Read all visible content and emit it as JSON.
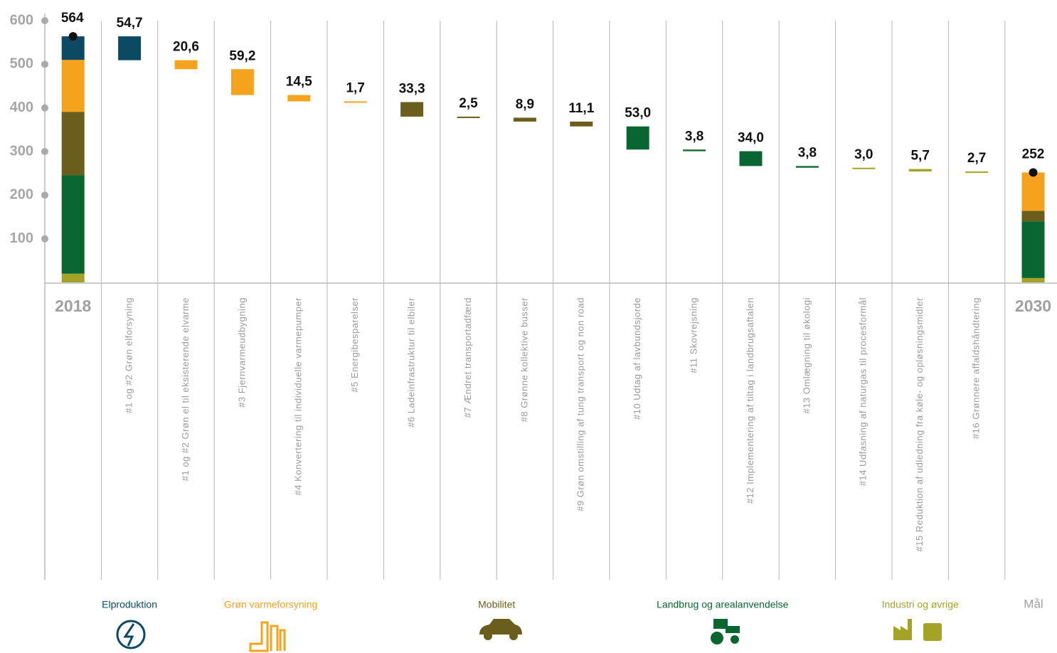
{
  "chart_data": {
    "type": "waterfall",
    "ylim": [
      0,
      600
    ],
    "yticks": [
      100,
      200,
      300,
      400,
      500,
      600
    ],
    "totals": {
      "categories": [
        "2018",
        "2030"
      ],
      "values": [
        564,
        252
      ],
      "series": [
        {
          "name": "Industri og øvrige",
          "color": "#a3a328",
          "values": [
            20,
            10
          ]
        },
        {
          "name": "Landbrug og arealanvendelse",
          "color": "#0a6630",
          "values": [
            226,
            130
          ]
        },
        {
          "name": "Mobilitet",
          "color": "#6b5e1c",
          "values": [
            145,
            24
          ]
        },
        {
          "name": "Grøn varmeforsyning",
          "color": "#f5a31c",
          "values": [
            119,
            88
          ]
        },
        {
          "name": "Elproduktion",
          "color": "#0b4a62",
          "values": [
            54,
            0
          ]
        }
      ]
    },
    "goal_label": "Mål",
    "groups": [
      {
        "name": "Elproduktion",
        "color": "#0b4a62",
        "categories": [
          "#1 og #2 Grøn elforsyning"
        ],
        "values": [
          54.7
        ],
        "value_labels": [
          "54,7"
        ]
      },
      {
        "name": "Grøn varmeforsyning",
        "color": "#f5a31c",
        "categories": [
          "#1 og #2 Grøn el til eksisterende elvarme",
          "#3 Fjernvarmeudbygning",
          "#4 Konvertering til individuelle varmepumper",
          "#5 Energibesparelser"
        ],
        "values": [
          20.6,
          59.2,
          14.5,
          1.7
        ],
        "value_labels": [
          "20,6",
          "59,2",
          "14,5",
          "1,7"
        ]
      },
      {
        "name": "Mobilitet",
        "color": "#6b5e1c",
        "categories": [
          "#6 Ladeinfrastruktur til elbiler",
          "#7 Ændret transportadfærd",
          "#8 Grønne kollektive busser",
          "#9  Grøn omstilling af tung transport og non road"
        ],
        "values": [
          33.3,
          2.5,
          8.9,
          11.1
        ],
        "value_labels": [
          "33,3",
          "2,5",
          "8,9",
          "11,1"
        ]
      },
      {
        "name": "Landbrug og arealanvendelse",
        "color": "#0a6630",
        "categories": [
          "#10 Udtag af lavbundsjorde",
          "#11 Skovrejsning",
          "#12 Implementering af tiltag i landbrugsaftalen",
          "#13 Omlægning til økologi"
        ],
        "values": [
          53.0,
          3.8,
          34.0,
          3.8
        ],
        "value_labels": [
          "53,0",
          "3,8",
          "34,0",
          "3,8"
        ]
      },
      {
        "name": "Industri og øvrige",
        "color": "#a3a328",
        "categories": [
          "#14 Udfasning af naturgas til procesformål",
          "#15 Reduktion af udledning fra køle- og opløsningsmidler",
          "#16 Grønnere affaldshåndtering"
        ],
        "values": [
          3.0,
          5.7,
          2.7
        ],
        "value_labels": [
          "3,0",
          "5,7",
          "2,7"
        ]
      }
    ]
  }
}
